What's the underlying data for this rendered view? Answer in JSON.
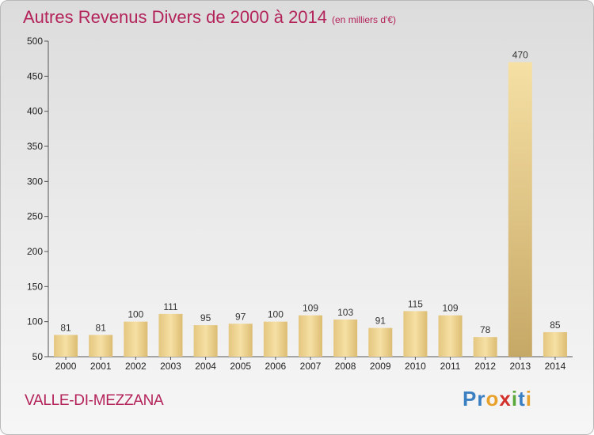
{
  "chart_data": {
    "type": "bar",
    "title": "Autres Revenus Divers de 2000 à 2014",
    "unit_note": "(en milliers d'€)",
    "categories": [
      "2000",
      "2001",
      "2002",
      "2003",
      "2004",
      "2005",
      "2006",
      "2007",
      "2008",
      "2009",
      "2010",
      "2011",
      "2012",
      "2013",
      "2014"
    ],
    "values": [
      81,
      81,
      100,
      111,
      95,
      97,
      100,
      109,
      103,
      91,
      115,
      109,
      78,
      470,
      85
    ],
    "ylim": [
      50,
      500
    ],
    "yticks": [
      50,
      100,
      150,
      200,
      250,
      300,
      350,
      400,
      450,
      500
    ],
    "grid": false,
    "bar_color": "#f2d898"
  },
  "footer": {
    "commune": "VALLE-DI-MEZZANA",
    "logo_letters": [
      {
        "ch": "P",
        "color": "#3a7fc1"
      },
      {
        "ch": "r",
        "color": "#3a7fc1"
      },
      {
        "ch": "o",
        "color": "#e8a12b"
      },
      {
        "ch": "x",
        "color": "#d3312b"
      },
      {
        "ch": "i",
        "color": "#5aa83a"
      },
      {
        "ch": "t",
        "color": "#3a7fc1"
      },
      {
        "ch": "i",
        "color": "#e8a12b"
      }
    ]
  },
  "colors": {
    "title": "#b3235a",
    "bar": "#f2d898",
    "bar_highlight": "#c9ad6a"
  }
}
